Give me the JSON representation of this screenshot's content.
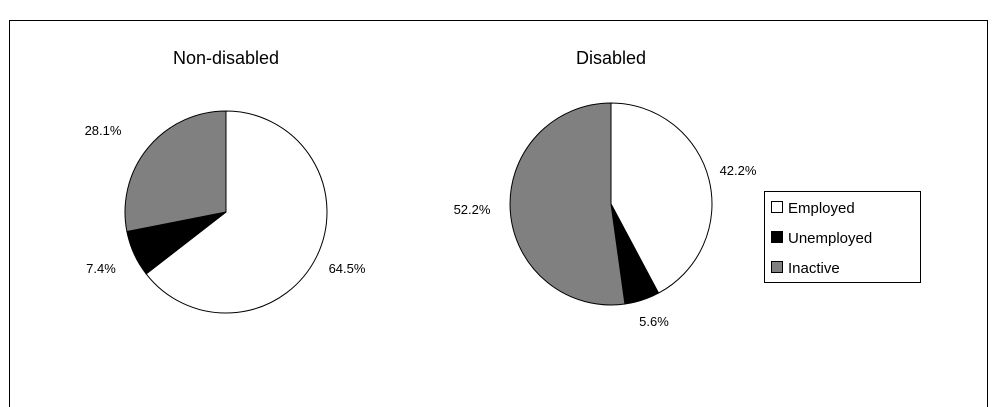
{
  "chart_data": [
    {
      "type": "pie",
      "title": "Non-disabled",
      "categories": [
        "Employed",
        "Unemployed",
        "Inactive"
      ],
      "values": [
        64.5,
        7.4,
        28.1
      ],
      "labels": [
        "64.5%",
        "7.4%",
        "28.1%"
      ],
      "start_angle": "12 o'clock",
      "direction": "clockwise"
    },
    {
      "type": "pie",
      "title": "Disabled",
      "categories": [
        "Employed",
        "Unemployed",
        "Inactive"
      ],
      "values": [
        42.2,
        5.6,
        52.2
      ],
      "labels": [
        "42.2%",
        "5.6%",
        "52.2%"
      ],
      "start_angle": "12 o'clock",
      "direction": "clockwise"
    }
  ],
  "legend": {
    "placement": "right",
    "items": [
      {
        "label": "Employed",
        "color": "#ffffff"
      },
      {
        "label": "Unemployed",
        "color": "#000000"
      },
      {
        "label": "Inactive",
        "color": "#808080"
      }
    ]
  },
  "colors": {
    "Employed": "#ffffff",
    "Unemployed": "#000000",
    "Inactive": "#808080",
    "outline": "#000000",
    "background": "#ffffff"
  }
}
